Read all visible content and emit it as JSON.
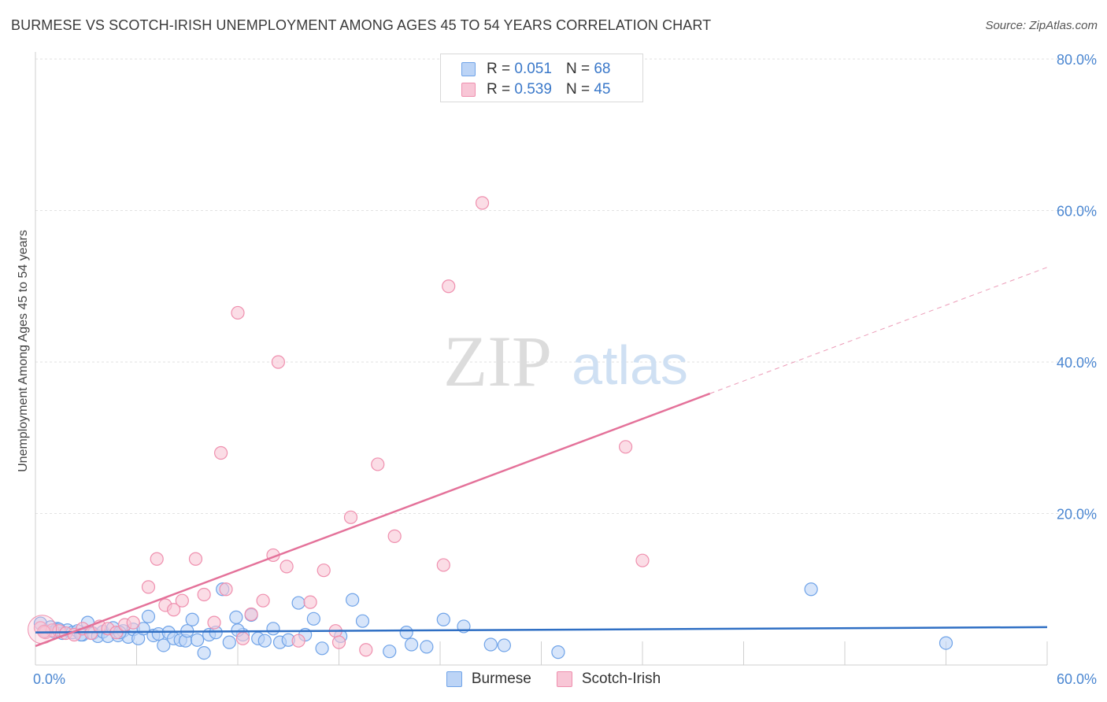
{
  "title": "BURMESE VS SCOTCH-IRISH UNEMPLOYMENT AMONG AGES 45 TO 54 YEARS CORRELATION CHART",
  "source": "Source: ZipAtlas.com",
  "watermark": {
    "zip": "ZIP",
    "atlas": "atlas"
  },
  "legend": {
    "rows": [
      {
        "r_label": "R =",
        "r_value": "0.051",
        "n_label": "N =",
        "n_value": "68",
        "color": "#6fa3e8",
        "fill": "#bcd4f6"
      },
      {
        "r_label": "R =",
        "r_value": "0.539",
        "n_label": "N =",
        "n_value": "45",
        "color": "#ef8fae",
        "fill": "#f8c6d6"
      }
    ]
  },
  "bottom_legend": [
    {
      "label": "Burmese",
      "color": "#6fa3e8",
      "fill": "#bcd4f6"
    },
    {
      "label": "Scotch-Irish",
      "color": "#ef8fae",
      "fill": "#f8c6d6"
    }
  ],
  "chart_data": {
    "type": "scatter",
    "title": "BURMESE VS SCOTCH-IRISH UNEMPLOYMENT AMONG AGES 45 TO 54 YEARS CORRELATION CHART",
    "xlabel": "",
    "ylabel": "Unemployment Among Ages 45 to 54 years",
    "xlim": [
      0,
      60
    ],
    "ylim": [
      0,
      80
    ],
    "x_tick_labels": [
      "0.0%",
      "60.0%"
    ],
    "y_ticks": [
      20,
      40,
      60,
      80
    ],
    "y_tick_labels": [
      "20.0%",
      "40.0%",
      "60.0%",
      "80.0%"
    ],
    "grid": true,
    "legend_position": "top-center",
    "series": [
      {
        "name": "Burmese",
        "color": "#6fa3e8",
        "fill": "#bcd4f6",
        "trend": {
          "x": [
            0,
            60
          ],
          "y": [
            4.3,
            5.0
          ],
          "dashed_from": null
        },
        "points": [
          [
            0.3,
            5.5
          ],
          [
            0.6,
            4.5
          ],
          [
            0.9,
            5.0
          ],
          [
            1.1,
            4.4
          ],
          [
            1.3,
            4.8
          ],
          [
            1.6,
            4.2
          ],
          [
            1.9,
            4.6
          ],
          [
            2.2,
            4.3
          ],
          [
            2.5,
            4.5
          ],
          [
            2.8,
            4.0
          ],
          [
            3.1,
            5.6
          ],
          [
            3.4,
            4.2
          ],
          [
            3.7,
            3.8
          ],
          [
            4.0,
            4.4
          ],
          [
            4.3,
            3.8
          ],
          [
            4.6,
            4.9
          ],
          [
            4.9,
            3.9
          ],
          [
            5.2,
            4.5
          ],
          [
            5.5,
            3.7
          ],
          [
            5.8,
            4.7
          ],
          [
            6.1,
            3.5
          ],
          [
            6.4,
            4.8
          ],
          [
            6.7,
            6.4
          ],
          [
            7.0,
            3.9
          ],
          [
            7.3,
            4.1
          ],
          [
            7.6,
            2.6
          ],
          [
            7.9,
            4.3
          ],
          [
            8.2,
            3.5
          ],
          [
            8.6,
            3.3
          ],
          [
            8.9,
            3.2
          ],
          [
            9.3,
            6.0
          ],
          [
            9.6,
            3.3
          ],
          [
            10.0,
            1.6
          ],
          [
            10.3,
            4.0
          ],
          [
            10.7,
            4.3
          ],
          [
            11.1,
            10.0
          ],
          [
            11.5,
            3.0
          ],
          [
            11.9,
            6.3
          ],
          [
            12.3,
            4.0
          ],
          [
            12.8,
            6.6
          ],
          [
            13.2,
            3.5
          ],
          [
            13.6,
            3.2
          ],
          [
            14.1,
            4.8
          ],
          [
            14.5,
            3.0
          ],
          [
            15.0,
            3.3
          ],
          [
            15.6,
            8.2
          ],
          [
            16.0,
            4.0
          ],
          [
            16.5,
            6.1
          ],
          [
            17.0,
            2.2
          ],
          [
            18.1,
            3.8
          ],
          [
            18.8,
            8.6
          ],
          [
            19.4,
            5.8
          ],
          [
            21.0,
            1.8
          ],
          [
            22.0,
            4.3
          ],
          [
            22.3,
            2.7
          ],
          [
            23.2,
            2.4
          ],
          [
            24.2,
            6.0
          ],
          [
            25.4,
            5.1
          ],
          [
            27.0,
            2.7
          ],
          [
            27.8,
            2.6
          ],
          [
            31.0,
            1.7
          ],
          [
            46.0,
            10.0
          ],
          [
            54.0,
            2.9
          ],
          [
            2.7,
            4.0
          ],
          [
            1.4,
            4.7
          ],
          [
            5.0,
            4.3
          ],
          [
            9.0,
            4.5
          ],
          [
            12.0,
            4.6
          ]
        ]
      },
      {
        "name": "Scotch-Irish",
        "color": "#ef8fae",
        "fill": "#f8c6d6",
        "trend": {
          "x": [
            0,
            60
          ],
          "y": [
            2.5,
            52.5
          ],
          "dashed_from": 40
        },
        "points": [
          [
            0.3,
            4.9
          ],
          [
            0.6,
            4.3
          ],
          [
            1.0,
            4.6
          ],
          [
            1.4,
            4.5
          ],
          [
            1.8,
            4.2
          ],
          [
            2.3,
            4.0
          ],
          [
            2.8,
            4.8
          ],
          [
            3.3,
            4.2
          ],
          [
            3.8,
            5.1
          ],
          [
            4.3,
            4.8
          ],
          [
            4.8,
            4.3
          ],
          [
            5.3,
            5.3
          ],
          [
            5.8,
            5.6
          ],
          [
            6.7,
            10.3
          ],
          [
            7.2,
            14.0
          ],
          [
            7.7,
            7.9
          ],
          [
            8.2,
            7.3
          ],
          [
            8.7,
            8.5
          ],
          [
            9.5,
            14.0
          ],
          [
            10.0,
            9.3
          ],
          [
            10.6,
            5.6
          ],
          [
            11.0,
            28.0
          ],
          [
            11.3,
            10.0
          ],
          [
            12.0,
            46.5
          ],
          [
            12.3,
            3.5
          ],
          [
            12.8,
            6.7
          ],
          [
            13.5,
            8.5
          ],
          [
            14.1,
            14.5
          ],
          [
            14.4,
            40.0
          ],
          [
            14.9,
            13.0
          ],
          [
            15.6,
            3.2
          ],
          [
            16.3,
            8.3
          ],
          [
            17.1,
            12.5
          ],
          [
            17.8,
            4.5
          ],
          [
            18.0,
            3.0
          ],
          [
            18.7,
            19.5
          ],
          [
            19.6,
            2.0
          ],
          [
            20.3,
            26.5
          ],
          [
            21.3,
            17.0
          ],
          [
            24.2,
            13.2
          ],
          [
            24.5,
            50.0
          ],
          [
            26.5,
            61.0
          ],
          [
            35.0,
            28.8
          ],
          [
            36.0,
            13.8
          ],
          [
            0.5,
            4.4
          ]
        ]
      }
    ]
  }
}
